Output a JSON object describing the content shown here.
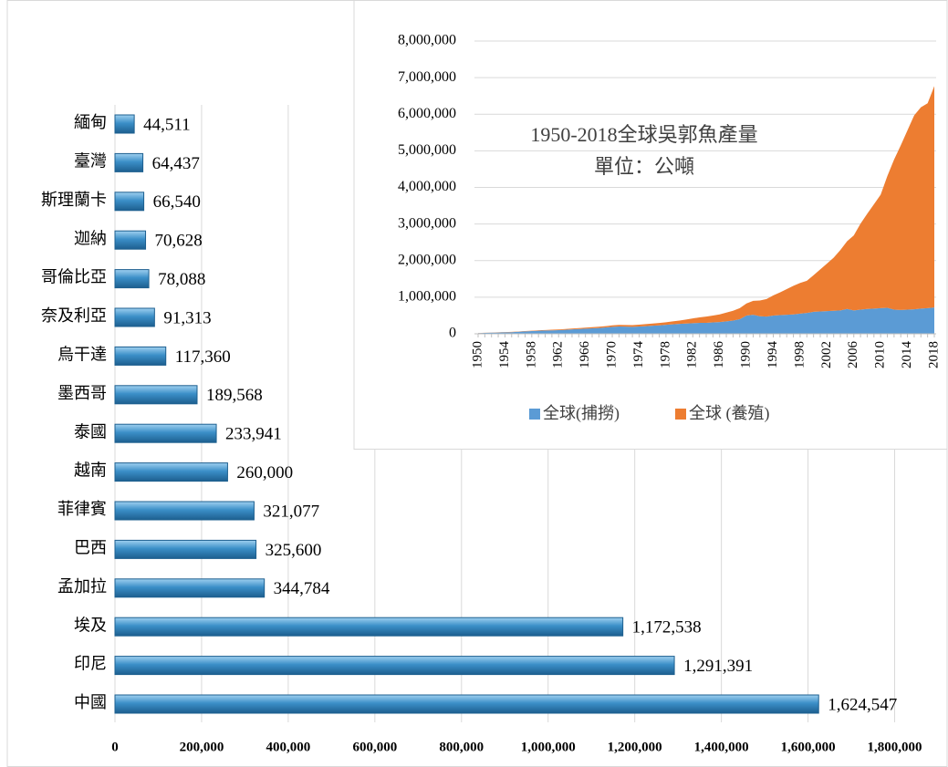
{
  "chart_data": [
    {
      "type": "bar",
      "orientation": "horizontal",
      "categories": [
        "緬甸",
        "臺灣",
        "斯理蘭卡",
        "迦納",
        "哥倫比亞",
        "奈及利亞",
        "烏干達",
        "墨西哥",
        "泰國",
        "越南",
        "菲律賓",
        "巴西",
        "孟加拉",
        "埃及",
        "印尼",
        "中國"
      ],
      "values": [
        44511,
        64437,
        66540,
        70628,
        78088,
        91313,
        117360,
        189568,
        233941,
        260000,
        321077,
        325600,
        344784,
        1172538,
        1291391,
        1624547
      ],
      "value_labels": [
        "44,511",
        "64,437",
        "66,540",
        "70,628",
        "78,088",
        "91,313",
        "117,360",
        "189,568",
        "233,941",
        "260,000",
        "321,077",
        "325,600",
        "344,784",
        "1,172,538",
        "1,291,391",
        "1,624,547"
      ],
      "color": "#3b8fc8",
      "xlim": [
        0,
        1900000
      ],
      "xticks": [
        0,
        {
          "value": 200000,
          "label": "200,000"
        },
        {
          "value": 400000,
          "label": "400,000"
        },
        {
          "value": 600000,
          "label": "600,000"
        },
        {
          "value": 800000,
          "label": "800,000"
        },
        {
          "value": 1000000,
          "label": "1,000,000"
        },
        {
          "value": 1200000,
          "label": "1,200,000"
        },
        {
          "value": 1400000,
          "label": "1,400,000"
        },
        {
          "value": 1600000,
          "label": "1,600,000"
        },
        {
          "value": 1800000,
          "label": "1,800,000"
        }
      ],
      "grid": true
    },
    {
      "type": "area",
      "stacked": true,
      "title": "1950-2018全球吳郭魚產量",
      "subtitle": "單位：公噸",
      "x": [
        1950,
        1951,
        1952,
        1953,
        1954,
        1955,
        1956,
        1957,
        1958,
        1959,
        1960,
        1961,
        1962,
        1963,
        1964,
        1965,
        1966,
        1967,
        1968,
        1969,
        1970,
        1971,
        1972,
        1973,
        1974,
        1975,
        1976,
        1977,
        1978,
        1979,
        1980,
        1981,
        1982,
        1983,
        1984,
        1985,
        1986,
        1987,
        1988,
        1989,
        1990,
        1991,
        1992,
        1993,
        1994,
        1995,
        1996,
        1997,
        1998,
        1999,
        2000,
        2001,
        2002,
        2003,
        2004,
        2005,
        2006,
        2007,
        2008,
        2009,
        2010,
        2011,
        2012,
        2013,
        2014,
        2015,
        2016,
        2017,
        2018
      ],
      "series": [
        {
          "name": "全球(捕撈)",
          "color": "#5b9bd5",
          "values": [
            20000,
            25000,
            30000,
            35000,
            40000,
            45000,
            55000,
            65000,
            75000,
            85000,
            90000,
            95000,
            100000,
            110000,
            120000,
            130000,
            140000,
            150000,
            160000,
            175000,
            190000,
            200000,
            195000,
            190000,
            200000,
            210000,
            220000,
            230000,
            245000,
            260000,
            270000,
            280000,
            290000,
            300000,
            300000,
            310000,
            320000,
            340000,
            360000,
            400000,
            500000,
            520000,
            480000,
            470000,
            500000,
            510000,
            520000,
            530000,
            550000,
            570000,
            600000,
            610000,
            620000,
            630000,
            640000,
            680000,
            640000,
            660000,
            680000,
            690000,
            700000,
            710000,
            660000,
            650000,
            660000,
            670000,
            690000,
            700000,
            720000
          ]
        },
        {
          "name": "全球 (養殖)",
          "color": "#ed7d31",
          "values": [
            2000,
            3000,
            4000,
            5000,
            6000,
            7000,
            8000,
            9000,
            10000,
            12000,
            14000,
            16000,
            18000,
            20000,
            22000,
            25000,
            28000,
            30000,
            32000,
            35000,
            40000,
            42000,
            45000,
            48000,
            50000,
            55000,
            60000,
            65000,
            70000,
            80000,
            90000,
            110000,
            130000,
            150000,
            170000,
            190000,
            210000,
            240000,
            270000,
            300000,
            330000,
            380000,
            430000,
            480000,
            550000,
            620000,
            700000,
            780000,
            840000,
            880000,
            1000000,
            1150000,
            1300000,
            1450000,
            1650000,
            1850000,
            2050000,
            2350000,
            2600000,
            2850000,
            3100000,
            3600000,
            4100000,
            4500000,
            4900000,
            5300000,
            5500000,
            5600000,
            6050000
          ]
        }
      ],
      "xlim": [
        1950,
        2018
      ],
      "xticks": [
        1950,
        1954,
        1958,
        1962,
        1966,
        1970,
        1974,
        1978,
        1982,
        1986,
        1990,
        1994,
        1998,
        2002,
        2006,
        2010,
        2014,
        2018
      ],
      "ylim": [
        0,
        8000000
      ],
      "yticks": [
        0,
        {
          "value": 1000000,
          "label": "1,000,000"
        },
        {
          "value": 2000000,
          "label": "2,000,000"
        },
        {
          "value": 3000000,
          "label": "3,000,000"
        },
        {
          "value": 4000000,
          "label": "4,000,000"
        },
        {
          "value": 5000000,
          "label": "5,000,000"
        },
        {
          "value": 6000000,
          "label": "6,000,000"
        },
        {
          "value": 7000000,
          "label": "7,000,000"
        },
        {
          "value": 8000000,
          "label": "8,000,000"
        }
      ],
      "grid": true,
      "legend": "bottom"
    }
  ]
}
